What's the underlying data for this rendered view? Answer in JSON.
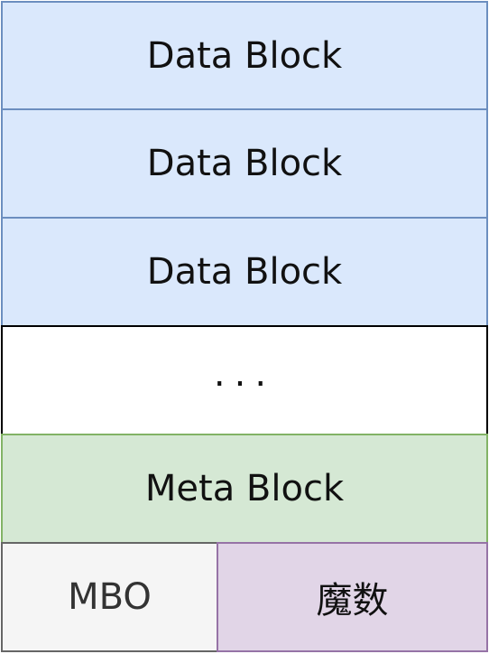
{
  "blocks": {
    "data_block_1": "Data Block",
    "data_block_2": "Data Block",
    "data_block_3": "Data Block",
    "ellipsis": "...",
    "meta_block": "Meta Block",
    "mbo": "MBO",
    "magic_number": "魔数"
  },
  "colors": {
    "data_fill": "#dae8fc",
    "data_stroke": "#6c8ebf",
    "meta_fill": "#d5e8d4",
    "meta_stroke": "#82b366",
    "mbo_fill": "#f5f5f5",
    "mbo_stroke": "#666666",
    "magic_fill": "#e1d5e7",
    "magic_stroke": "#9673a6"
  }
}
